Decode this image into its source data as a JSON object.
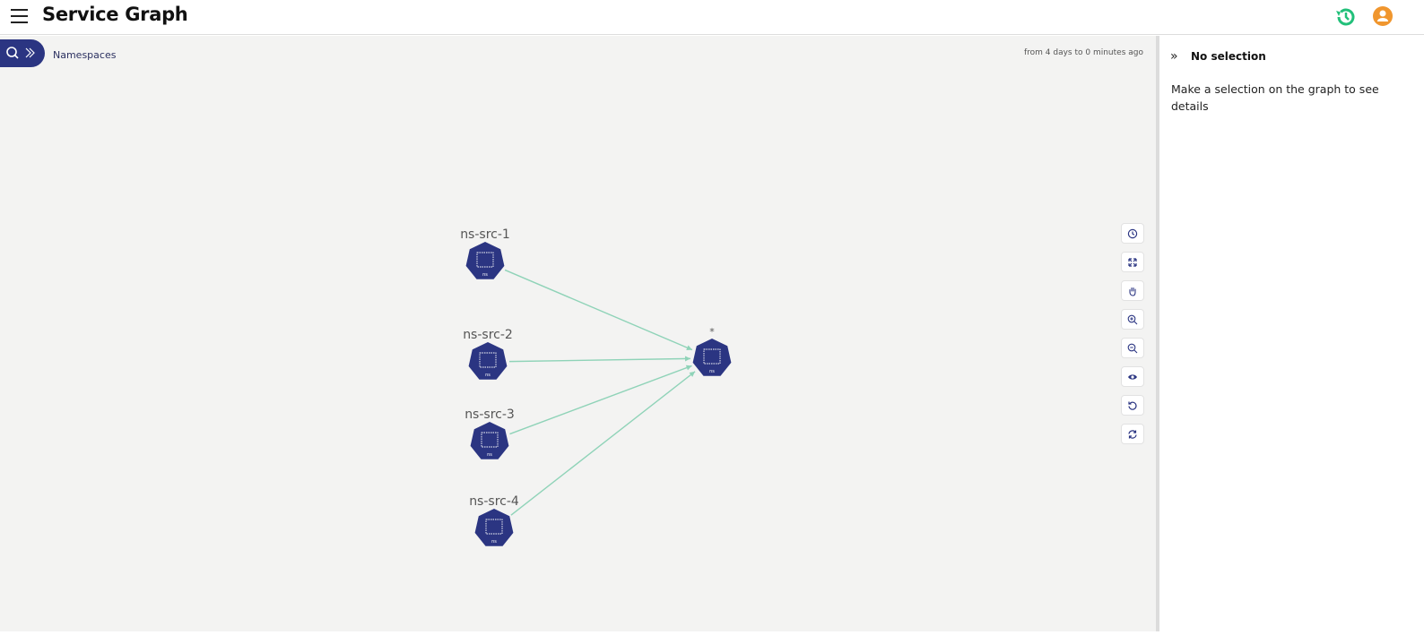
{
  "header": {
    "title": "Service Graph",
    "history_icon": "history-icon",
    "user_icon": "user-icon",
    "history_color": "#22c07a",
    "avatar_color": "#f0962e"
  },
  "toolbar": {
    "namespaces_label": "Namespaces",
    "time_range": "from 4 days to 0 minutes ago"
  },
  "graph": {
    "node_color": "#2b3582",
    "edge_color": "#8fd3b8",
    "nodes": [
      {
        "label": "ns-src-1",
        "type": "ns"
      },
      {
        "label": "ns-src-2",
        "type": "ns"
      },
      {
        "label": "ns-src-3",
        "type": "ns"
      },
      {
        "label": "ns-src-4",
        "type": "ns"
      },
      {
        "label": "*",
        "type": "ns"
      }
    ],
    "edges": [
      {
        "from": "ns-src-1",
        "to": "*"
      },
      {
        "from": "ns-src-2",
        "to": "*"
      },
      {
        "from": "ns-src-3",
        "to": "*"
      },
      {
        "from": "ns-src-4",
        "to": "*"
      }
    ]
  },
  "graph_tools": [
    "history",
    "fit-screen",
    "pan",
    "zoom-in",
    "zoom-out",
    "display",
    "reset-layout",
    "refresh"
  ],
  "side_panel": {
    "title": "No selection",
    "message": "Make a selection on the graph to see details"
  }
}
